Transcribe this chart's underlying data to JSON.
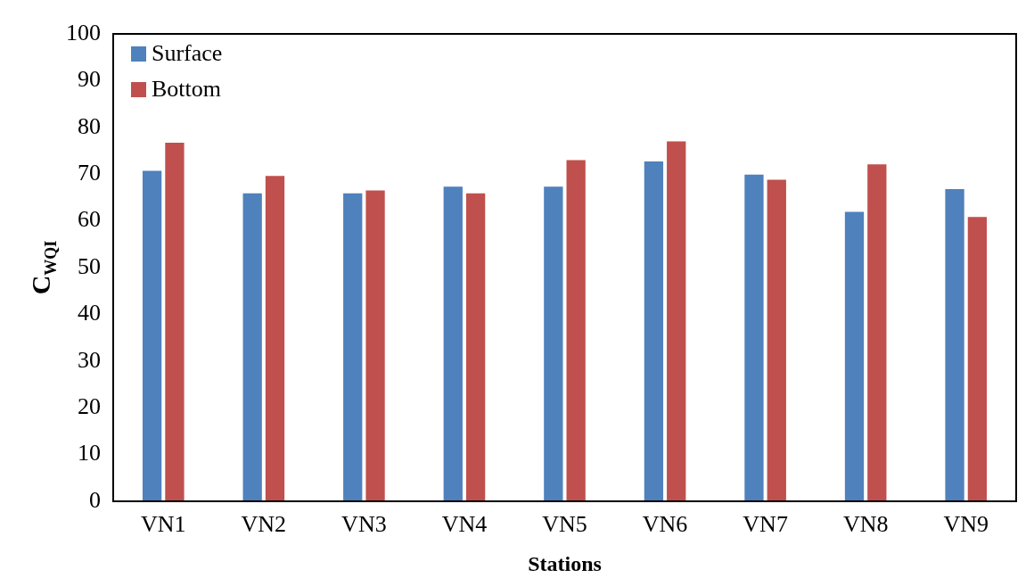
{
  "chart_data": {
    "type": "bar",
    "xlabel": "Stations",
    "ylabel": "C$_{WQI}$",
    "categories": [
      "VN1",
      "VN2",
      "VN3",
      "VN4",
      "VN5",
      "VN6",
      "VN7",
      "VN8",
      "VN9"
    ],
    "series": [
      {
        "name": "Surface",
        "color": "#4f81bd",
        "values": [
          70.9,
          66.1,
          66.1,
          67.5,
          67.5,
          72.9,
          70.1,
          62.1,
          67.0
        ]
      },
      {
        "name": "Bottom",
        "color": "#c0504d",
        "values": [
          76.9,
          69.8,
          66.7,
          66.1,
          73.2,
          77.2,
          69.0,
          72.3,
          61.0
        ]
      }
    ],
    "ylim": [
      0,
      100
    ],
    "yticks": [
      0,
      10,
      20,
      30,
      40,
      50,
      60,
      70,
      80,
      90,
      100
    ],
    "grid": false,
    "legend": "top left"
  }
}
